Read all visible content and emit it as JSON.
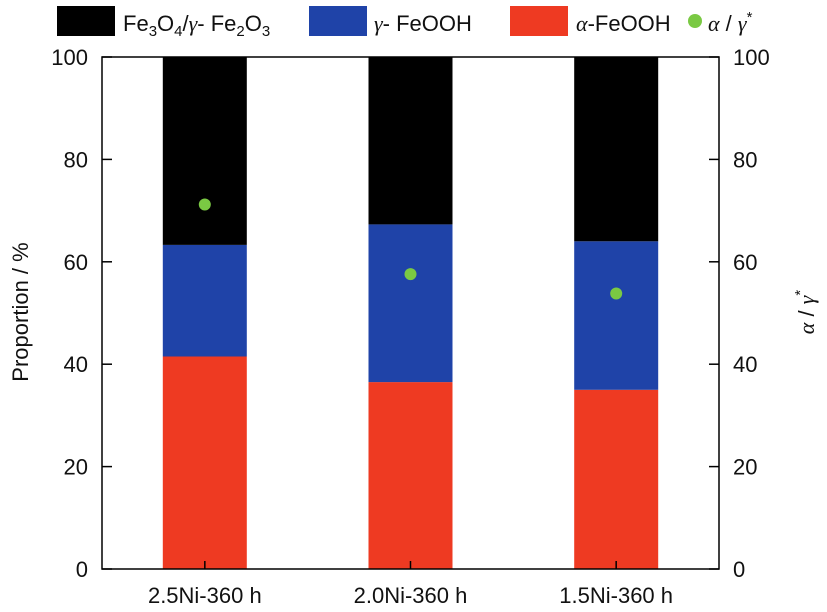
{
  "chart_data": {
    "type": "bar",
    "stacked": true,
    "categories": [
      "2.5Ni-360 h",
      "2.0Ni-360 h",
      "1.5Ni-360 h"
    ],
    "series": [
      {
        "name": "α-FeOOH",
        "values": [
          41.5,
          36.5,
          35
        ],
        "color": "#ee3a22"
      },
      {
        "name": "γ-FeOOH",
        "values": [
          21.8,
          30.8,
          29
        ],
        "color": "#1f43a8"
      },
      {
        "name": "Fe3O4/γ-Fe2O3",
        "values": [
          36.7,
          32.7,
          36
        ],
        "color": "#000000"
      }
    ],
    "secondary_series": {
      "name": "α / γ*",
      "values": [
        71.2,
        57.6,
        53.8
      ],
      "color": "#7ac943",
      "marker": "circle"
    },
    "ylabel": "Proportion / %",
    "y2label": "α / γ*",
    "ylim": [
      0,
      100
    ],
    "y2lim": [
      0,
      100
    ],
    "yticks": [
      0,
      20,
      40,
      60,
      80,
      100
    ],
    "legend_position": "top"
  },
  "legend": {
    "fe_oxide": {
      "a": "Fe",
      "a_sub": "3",
      "b": "O",
      "b_sub": "4",
      "c": "/",
      "gamma": "γ",
      "d": "- Fe",
      "d_sub": "2",
      "e": "O",
      "e_sub": "3"
    },
    "gamma_feooh": {
      "symbol": "γ",
      "text": "- FeOOH"
    },
    "alpha_feooh": {
      "symbol": "α",
      "text": "-FeOOH"
    },
    "ratio": {
      "alpha": "α",
      "slash": " / ",
      "gamma": "γ",
      "star": "*"
    }
  }
}
